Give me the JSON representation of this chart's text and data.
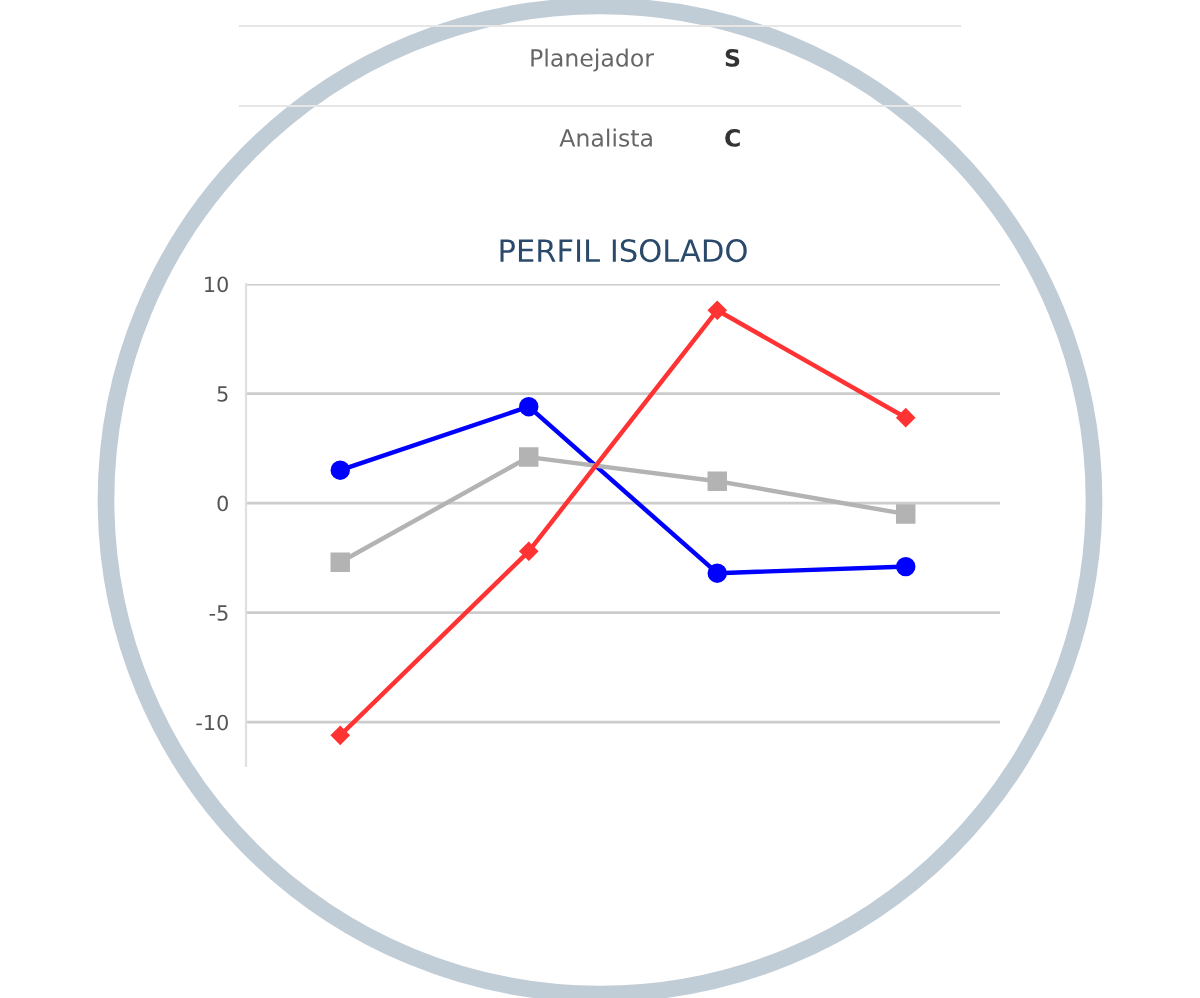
{
  "chart_data": {
    "type": "line",
    "title": "PERFIL ISOLADO",
    "annotations": [
      "Planejador",
      "S",
      "Analista",
      "C"
    ],
    "categories": [
      null,
      null,
      null,
      null
    ],
    "series": [
      {
        "color": "#0000ff",
        "marker": "circle",
        "values": [
          1.5,
          4.4,
          -3.2,
          -2.9
        ]
      },
      {
        "color": "#b3b3b3",
        "marker": "square",
        "values": [
          -2.7,
          2.1,
          1.0,
          -0.5
        ]
      },
      {
        "color": "#ff3333",
        "marker": "diamond",
        "values": [
          -10.6,
          -2.2,
          8.8,
          3.9
        ]
      }
    ],
    "ylim": [
      -12,
      10
    ],
    "yticks": [
      10,
      5,
      0,
      -5,
      -10
    ],
    "grid": "y",
    "line_style": "solid"
  }
}
